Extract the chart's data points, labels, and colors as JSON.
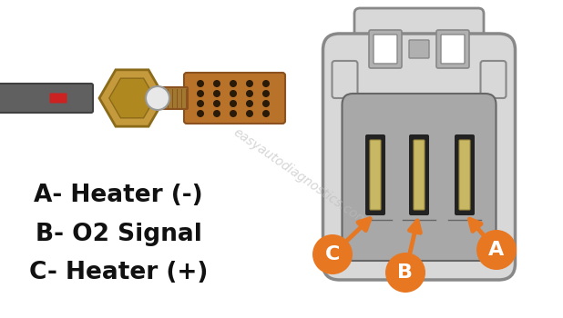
{
  "background_color": "#ffffff",
  "labels": {
    "A": "A- Heater (-)",
    "B": "B- O2 Signal",
    "C": "C- Heater (+)"
  },
  "circle_color": "#E87722",
  "circle_text_color": "#ffffff",
  "connector_outer_color": "#D8D8D8",
  "connector_outer_edge": "#888888",
  "connector_inner_color": "#A8A8A8",
  "connector_inner_edge": "#666666",
  "connector_tab_color": "#D8D8D8",
  "connector_tab_edge": "#888888",
  "connector_tab_inner_color": "#B0B0B0",
  "terminal_gold": "#C8B864",
  "terminal_black": "#222222",
  "arrow_color": "#E87722",
  "text_color": "#111111",
  "sensor_copper": "#B8722A",
  "sensor_copper_light": "#D4924A",
  "sensor_copper_dark": "#8B5220",
  "sensor_hole_color": "#2a1a08",
  "sensor_hex_color": "#C49A3C",
  "sensor_hex_edge": "#8B6A1A",
  "sensor_thread_color": "#A07830",
  "sensor_gasket": "#E8E8E8",
  "sensor_gasket_edge": "#999999",
  "sensor_cable_color": "#606060",
  "sensor_cable_edge": "#404040",
  "sensor_cable_stripe": "#cc2222",
  "watermark_color": "#bbbbbb"
}
